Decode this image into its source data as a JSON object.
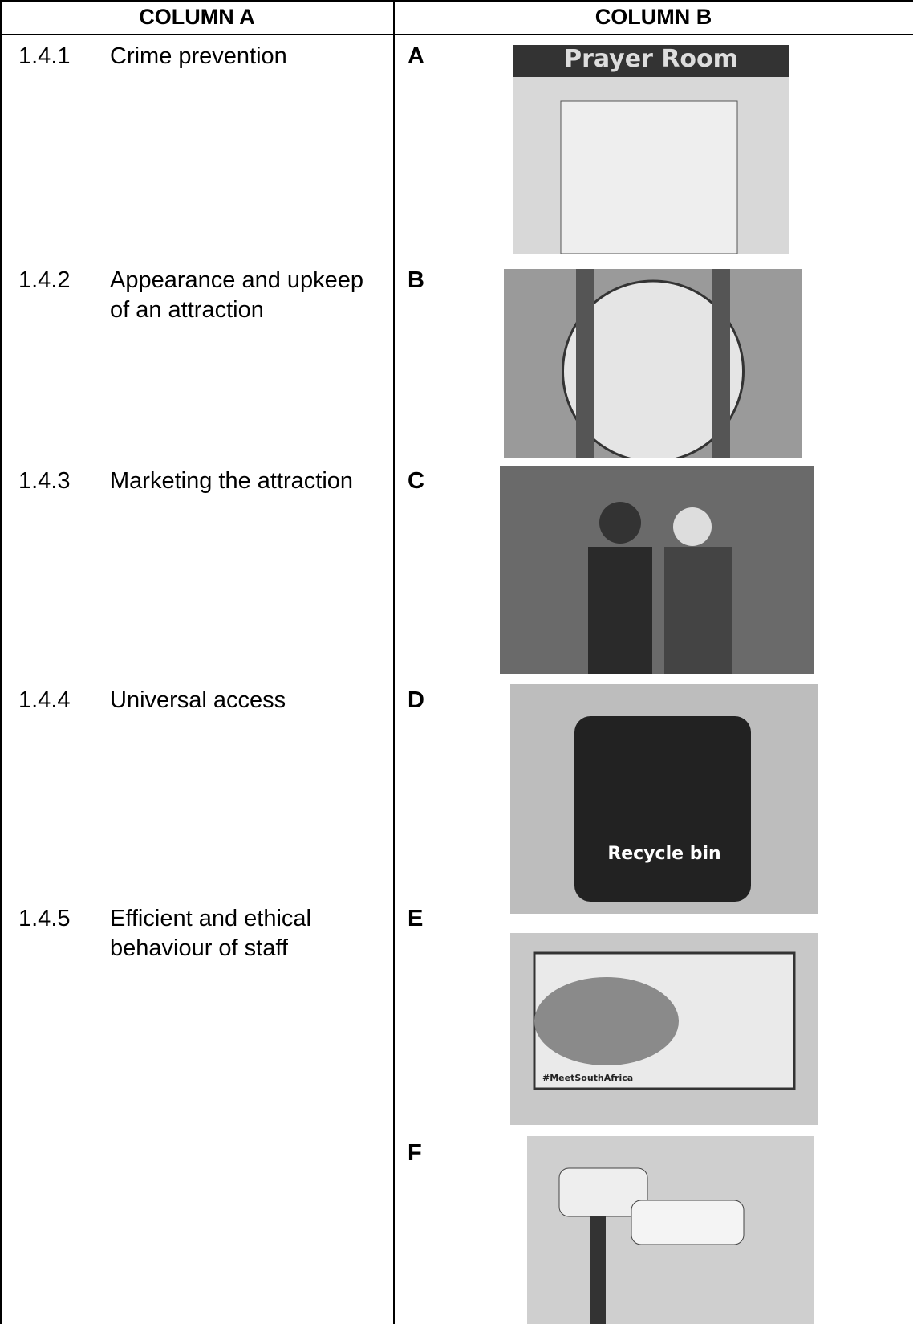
{
  "table": {
    "headers": [
      "COLUMN A",
      "COLUMN B"
    ],
    "column_a": [
      {
        "number": "1.4.1",
        "text": "Crime prevention"
      },
      {
        "number": "1.4.2",
        "text": "Appearance and upkeep of an attraction"
      },
      {
        "number": "1.4.3",
        "text": "Marketing the attraction"
      },
      {
        "number": "1.4.4",
        "text": "Universal access"
      },
      {
        "number": "1.4.5",
        "text": "Efficient and ethical behaviour of staff"
      }
    ],
    "column_b": [
      {
        "letter": "A",
        "image_text": "Prayer Room"
      },
      {
        "letter": "B"
      },
      {
        "letter": "C"
      },
      {
        "letter": "D",
        "image_text": "Recycle bin"
      },
      {
        "letter": "E",
        "image_text": "#MeetSouthAfrica"
      },
      {
        "letter": "F"
      }
    ]
  }
}
